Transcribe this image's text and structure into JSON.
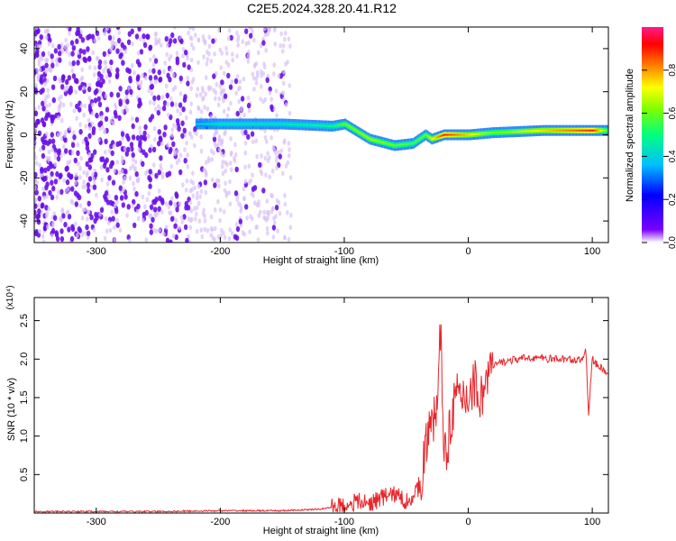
{
  "title": "C2E5.2024.328.20.41.R12",
  "chart_data": [
    {
      "type": "heatmap",
      "xlabel": "Height of straight line (km)",
      "ylabel": "Frequency (Hz)",
      "xlim": [
        -350,
        113
      ],
      "ylim": [
        -50,
        50
      ],
      "xticks": [
        -300,
        -200,
        -100,
        0,
        100
      ],
      "yticks": [
        -40,
        -20,
        0,
        20,
        40
      ],
      "colorbar": {
        "label": "Normalized spectral amplitude",
        "range": [
          0.0,
          1.0
        ],
        "ticks": [
          "0.0",
          "0.2",
          "0.4",
          "0.6",
          "0.8"
        ],
        "tick_values": [
          0.0,
          0.2,
          0.4,
          0.6,
          0.8
        ],
        "colors": [
          "#ffffff",
          "#7b00ff",
          "#0000ff",
          "#00bfff",
          "#00ff7f",
          "#7fff00",
          "#ffff00",
          "#ff8000",
          "#ff0000",
          "#ff1a8c"
        ]
      },
      "ridge": {
        "x": [
          -220,
          -200,
          -150,
          -110,
          -100,
          -80,
          -60,
          -45,
          -35,
          -30,
          -20,
          0,
          20,
          60,
          100,
          113
        ],
        "y": [
          5,
          5,
          5,
          4,
          5,
          -2,
          -5,
          -4,
          0,
          -2,
          0,
          0,
          1,
          2,
          2,
          2
        ],
        "amplitude": [
          0.4,
          0.45,
          0.45,
          0.5,
          0.6,
          0.65,
          0.6,
          0.55,
          0.6,
          0.7,
          0.9,
          0.75,
          0.6,
          0.75,
          0.9,
          0.55
        ]
      },
      "noise_region": {
        "x_range": [
          -350,
          -150
        ],
        "amplitude": 0.2
      }
    },
    {
      "type": "line",
      "xlabel": "Height of straight line (km)",
      "ylabel": "SNR (10 * v/v)",
      "y_multiplier": "(x10⁴)",
      "xlim": [
        -350,
        113
      ],
      "ylim": [
        0,
        2.8
      ],
      "xticks": [
        -300,
        -200,
        -100,
        0,
        100
      ],
      "yticks": [
        "0.5",
        "1.0",
        "1.5",
        "2.0",
        "2.5"
      ],
      "ytick_values": [
        0.5,
        1.0,
        1.5,
        2.0,
        2.5
      ],
      "series": [
        {
          "color": "#e8262b",
          "x": [
            -350,
            -300,
            -250,
            -200,
            -150,
            -120,
            -100,
            -90,
            -80,
            -70,
            -60,
            -50,
            -40,
            -35,
            -30,
            -25,
            -22,
            -20,
            -18,
            -15,
            -10,
            -5,
            0,
            5,
            10,
            15,
            20,
            25,
            30,
            40,
            50,
            60,
            70,
            80,
            90,
            95,
            97,
            100,
            105,
            110,
            113
          ],
          "y": [
            0.02,
            0.02,
            0.02,
            0.03,
            0.03,
            0.05,
            0.1,
            0.15,
            0.12,
            0.2,
            0.25,
            0.15,
            0.3,
            0.8,
            1.1,
            1.4,
            2.5,
            1.0,
            0.6,
            1.2,
            1.5,
            1.45,
            1.55,
            1.7,
            1.5,
            1.75,
            1.9,
            1.95,
            1.97,
            2.0,
            2.02,
            2.01,
            2.0,
            2.0,
            1.98,
            2.1,
            1.3,
            2.0,
            1.9,
            1.85,
            1.8
          ]
        }
      ]
    }
  ]
}
